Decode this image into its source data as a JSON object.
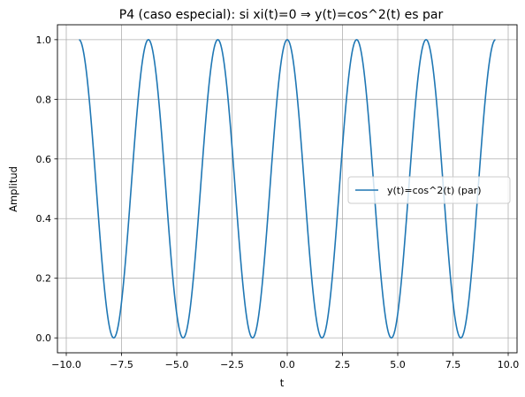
{
  "chart_data": {
    "type": "line",
    "title": "P4 (caso especial): si xi(t)=0 ⇒ y(t)=cos^2(t) es par",
    "xlabel": "t",
    "ylabel": "Amplitud",
    "xlim": [
      -10.4,
      10.4
    ],
    "ylim": [
      -0.05,
      1.05
    ],
    "xticks": [
      -10.0,
      -7.5,
      -5.0,
      -2.5,
      0.0,
      2.5,
      5.0,
      7.5,
      10.0
    ],
    "xtick_labels": [
      "−10.0",
      "−7.5",
      "−5.0",
      "−2.5",
      "0.0",
      "2.5",
      "5.0",
      "7.5",
      "10.0"
    ],
    "yticks": [
      0.0,
      0.2,
      0.4,
      0.6,
      0.8,
      1.0
    ],
    "ytick_labels": [
      "0.0",
      "0.2",
      "0.4",
      "0.6",
      "0.8",
      "1.0"
    ],
    "grid": true,
    "legend_position": "right",
    "series": [
      {
        "name": "y(t)=cos^2(t) (par)",
        "function": "cos^2(t)",
        "x_range": [
          -9.42,
          9.42
        ],
        "color": "#1f77b4"
      }
    ]
  }
}
